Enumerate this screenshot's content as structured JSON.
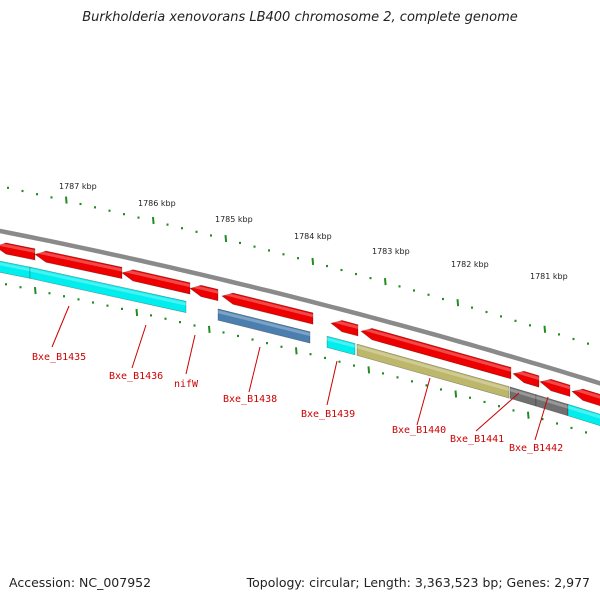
{
  "title": "Burkholderia xenovorans LB400 chromosome 2, complete genome",
  "footer": {
    "accession": "Accession: NC_007952",
    "summary": "Topology: circular; Length: 3,363,523 bp; Genes: 2,977"
  },
  "scale_labels": [
    "1787 kbp",
    "1786 kbp",
    "1785 kbp",
    "1784 kbp",
    "1783 kbp",
    "1782 kbp",
    "1781 kbp"
  ],
  "colors": {
    "red": "#ee0000",
    "cyan": "#00eeee",
    "blue": "#4a7fb0",
    "khaki": "#bdb76b",
    "gray": "#707070",
    "backbone": "#8a8a8a",
    "tick": "#228b22",
    "label": "#cc0000"
  },
  "genes": [
    {
      "label": "Bxe_B1435"
    },
    {
      "label": "Bxe_B1436"
    },
    {
      "label": "nifW"
    },
    {
      "label": "Bxe_B1438"
    },
    {
      "label": "Bxe_B1439"
    },
    {
      "label": "Bxe_B1440"
    },
    {
      "label": "Bxe_B1441"
    },
    {
      "label": "Bxe_B1442"
    }
  ]
}
